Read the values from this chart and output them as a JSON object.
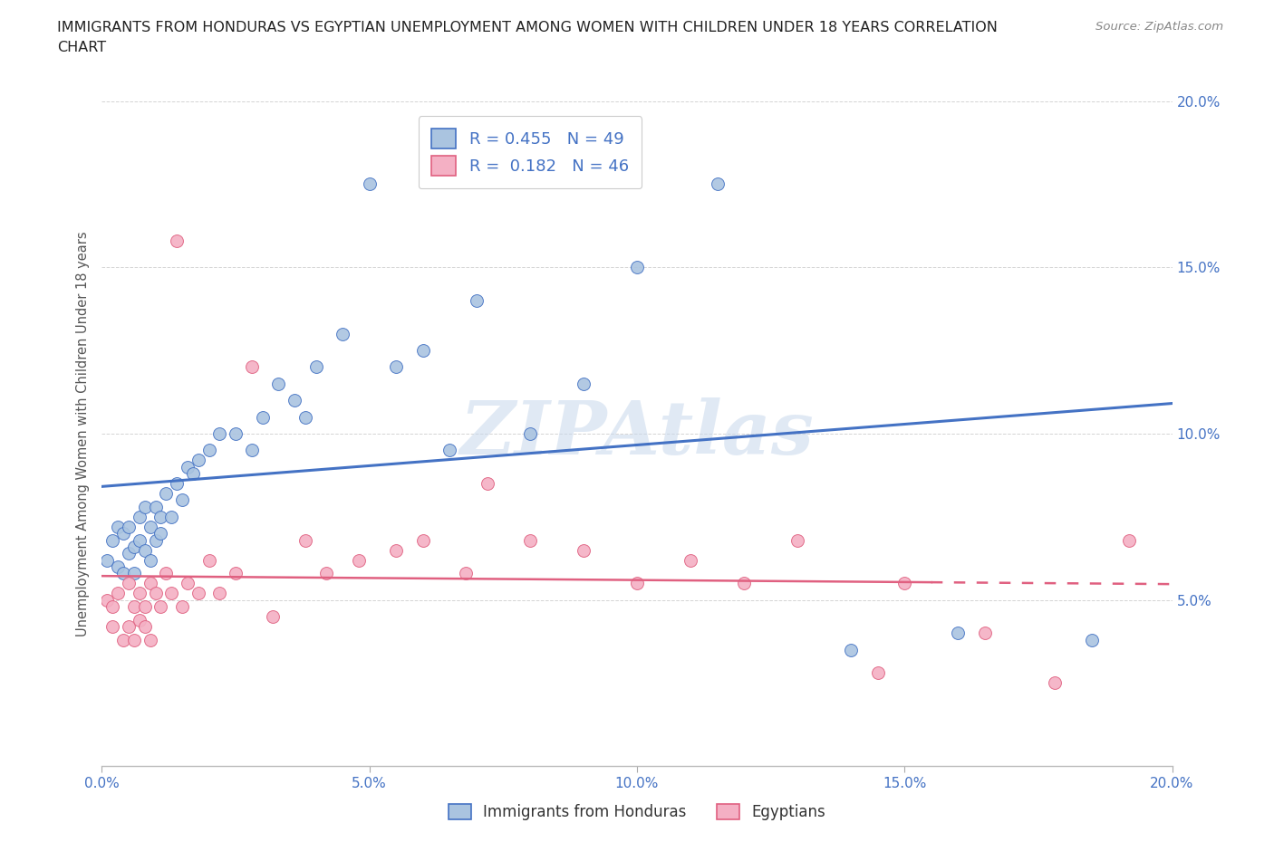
{
  "title": "IMMIGRANTS FROM HONDURAS VS EGYPTIAN UNEMPLOYMENT AMONG WOMEN WITH CHILDREN UNDER 18 YEARS CORRELATION\nCHART",
  "source": "Source: ZipAtlas.com",
  "ylabel": "Unemployment Among Women with Children Under 18 years",
  "xlim": [
    0.0,
    0.2
  ],
  "ylim": [
    0.0,
    0.2
  ],
  "xticks": [
    0.0,
    0.05,
    0.1,
    0.15,
    0.2
  ],
  "yticks": [
    0.05,
    0.1,
    0.15,
    0.2
  ],
  "legend_labels": [
    "Immigrants from Honduras",
    "Egyptians"
  ],
  "r_honduras": 0.455,
  "n_honduras": 49,
  "r_egyptians": 0.182,
  "n_egyptians": 46,
  "color_honduras": "#aac4e0",
  "color_egyptians": "#f4b0c4",
  "line_color_honduras": "#4472c4",
  "line_color_egyptians": "#e06080",
  "watermark": "ZIPAtlas",
  "background_color": "#ffffff",
  "grid_color": "#d0d0d0",
  "honduras_x": [
    0.001,
    0.002,
    0.003,
    0.003,
    0.004,
    0.004,
    0.005,
    0.005,
    0.006,
    0.006,
    0.007,
    0.007,
    0.008,
    0.008,
    0.009,
    0.009,
    0.01,
    0.01,
    0.011,
    0.011,
    0.012,
    0.013,
    0.014,
    0.015,
    0.016,
    0.017,
    0.018,
    0.02,
    0.022,
    0.025,
    0.028,
    0.03,
    0.033,
    0.036,
    0.038,
    0.04,
    0.045,
    0.05,
    0.055,
    0.06,
    0.065,
    0.07,
    0.08,
    0.09,
    0.1,
    0.115,
    0.14,
    0.16,
    0.185
  ],
  "honduras_y": [
    0.062,
    0.068,
    0.06,
    0.072,
    0.058,
    0.07,
    0.064,
    0.072,
    0.058,
    0.066,
    0.068,
    0.075,
    0.065,
    0.078,
    0.062,
    0.072,
    0.068,
    0.078,
    0.07,
    0.075,
    0.082,
    0.075,
    0.085,
    0.08,
    0.09,
    0.088,
    0.092,
    0.095,
    0.1,
    0.1,
    0.095,
    0.105,
    0.115,
    0.11,
    0.105,
    0.12,
    0.13,
    0.175,
    0.12,
    0.125,
    0.095,
    0.14,
    0.1,
    0.115,
    0.15,
    0.175,
    0.035,
    0.04,
    0.038
  ],
  "egyptians_x": [
    0.001,
    0.002,
    0.002,
    0.003,
    0.004,
    0.005,
    0.005,
    0.006,
    0.006,
    0.007,
    0.007,
    0.008,
    0.008,
    0.009,
    0.009,
    0.01,
    0.011,
    0.012,
    0.013,
    0.014,
    0.015,
    0.016,
    0.018,
    0.02,
    0.022,
    0.025,
    0.028,
    0.032,
    0.038,
    0.042,
    0.048,
    0.055,
    0.06,
    0.068,
    0.072,
    0.08,
    0.09,
    0.1,
    0.11,
    0.12,
    0.13,
    0.145,
    0.15,
    0.165,
    0.178,
    0.192
  ],
  "egyptians_y": [
    0.05,
    0.048,
    0.042,
    0.052,
    0.038,
    0.055,
    0.042,
    0.048,
    0.038,
    0.052,
    0.044,
    0.048,
    0.042,
    0.055,
    0.038,
    0.052,
    0.048,
    0.058,
    0.052,
    0.158,
    0.048,
    0.055,
    0.052,
    0.062,
    0.052,
    0.058,
    0.12,
    0.045,
    0.068,
    0.058,
    0.062,
    0.065,
    0.068,
    0.058,
    0.085,
    0.068,
    0.065,
    0.055,
    0.062,
    0.055,
    0.068,
    0.028,
    0.055,
    0.04,
    0.025,
    0.068
  ]
}
